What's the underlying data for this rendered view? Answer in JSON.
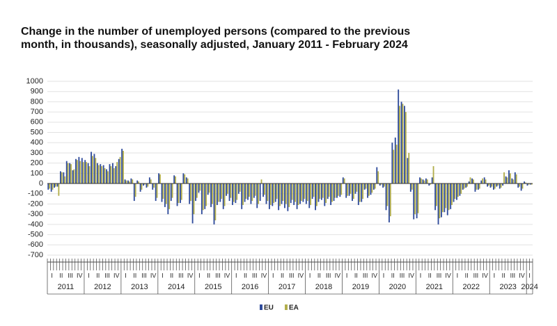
{
  "chart_data": {
    "type": "bar",
    "title": "Change in the number of unemployed persons (compared to the previous month, in thousands), seasonally adjusted, January 2011 - February 2024",
    "years": [
      "2011",
      "2012",
      "2013",
      "2014",
      "2015",
      "2016",
      "2017",
      "2018",
      "2019",
      "2020",
      "2021",
      "2022",
      "2023",
      "2024"
    ],
    "quarter_labels": [
      "I",
      "II",
      "III",
      "IV"
    ],
    "ylim": [
      -700,
      1000
    ],
    "yticks": [
      -700,
      -600,
      -500,
      -400,
      -300,
      -200,
      -100,
      0,
      100,
      200,
      300,
      400,
      500,
      600,
      700,
      800,
      900,
      1000
    ],
    "grid": true,
    "legend": "bottom",
    "series": [
      {
        "name": "EU",
        "color": "#2f4b9b",
        "values": [
          -60,
          -80,
          -40,
          -30,
          120,
          110,
          220,
          200,
          130,
          240,
          260,
          250,
          230,
          200,
          310,
          290,
          200,
          190,
          180,
          140,
          190,
          200,
          170,
          240,
          340,
          40,
          30,
          50,
          -170,
          30,
          -80,
          -20,
          -40,
          60,
          -60,
          -170,
          100,
          -180,
          -230,
          -300,
          -170,
          80,
          -220,
          -190,
          100,
          60,
          -200,
          -390,
          -170,
          -90,
          -300,
          -250,
          -110,
          -230,
          -400,
          -210,
          -180,
          -250,
          -120,
          -170,
          -210,
          -190,
          -100,
          -250,
          -180,
          -160,
          -200,
          -140,
          -240,
          -170,
          -130,
          -200,
          -250,
          -220,
          -180,
          -260,
          -200,
          -240,
          -270,
          -190,
          -210,
          -250,
          -200,
          -180,
          -200,
          -240,
          -150,
          -260,
          -180,
          -160,
          -220,
          -150,
          -210,
          -170,
          -140,
          -130,
          60,
          -140,
          -120,
          -170,
          -100,
          -210,
          -180,
          -60,
          -140,
          -110,
          -60,
          160,
          -20,
          -40,
          -260,
          -380,
          400,
          450,
          920,
          800,
          760,
          250,
          -80,
          -350,
          -340,
          60,
          40,
          50,
          -20,
          60,
          -260,
          -400,
          -330,
          -280,
          -310,
          -250,
          -180,
          -160,
          -120,
          -60,
          -40,
          20,
          50,
          -80,
          -60,
          30,
          60,
          -30,
          -40,
          -60,
          -30,
          -50,
          -20,
          70,
          130,
          50,
          110,
          -40,
          -70,
          20,
          -20,
          -10
        ]
      },
      {
        "name": "EA",
        "color": "#b2ae4c",
        "values": [
          -50,
          -60,
          -30,
          -120,
          110,
          70,
          200,
          190,
          140,
          230,
          220,
          210,
          210,
          170,
          270,
          250,
          180,
          170,
          150,
          120,
          170,
          150,
          210,
          260,
          320,
          30,
          20,
          40,
          -130,
          20,
          -60,
          -10,
          -30,
          40,
          -40,
          -140,
          90,
          -150,
          -200,
          -250,
          -140,
          70,
          -190,
          -160,
          90,
          50,
          -170,
          -300,
          -140,
          -70,
          -260,
          -220,
          -90,
          -200,
          -360,
          -180,
          -150,
          -220,
          -100,
          -140,
          -180,
          -160,
          -80,
          -210,
          -150,
          -130,
          -170,
          -120,
          -200,
          40,
          -110,
          -170,
          -210,
          -190,
          -150,
          -220,
          -170,
          -200,
          -230,
          -160,
          -180,
          -210,
          -170,
          -150,
          -170,
          -210,
          -130,
          -220,
          -150,
          -140,
          -190,
          -130,
          -180,
          -140,
          -120,
          -110,
          50,
          -120,
          -100,
          -150,
          -80,
          -180,
          -150,
          -50,
          -120,
          -90,
          -50,
          120,
          -10,
          -30,
          -220,
          -320,
          330,
          380,
          760,
          780,
          700,
          300,
          -60,
          -300,
          -290,
          50,
          30,
          40,
          -10,
          170,
          -220,
          -340,
          -280,
          -240,
          -260,
          -210,
          -150,
          -130,
          -100,
          -50,
          -30,
          60,
          40,
          -60,
          -50,
          50,
          40,
          -20,
          -30,
          -50,
          -20,
          -40,
          110,
          60,
          100,
          40,
          90,
          -30,
          -50,
          10,
          -10,
          -10
        ]
      }
    ]
  }
}
